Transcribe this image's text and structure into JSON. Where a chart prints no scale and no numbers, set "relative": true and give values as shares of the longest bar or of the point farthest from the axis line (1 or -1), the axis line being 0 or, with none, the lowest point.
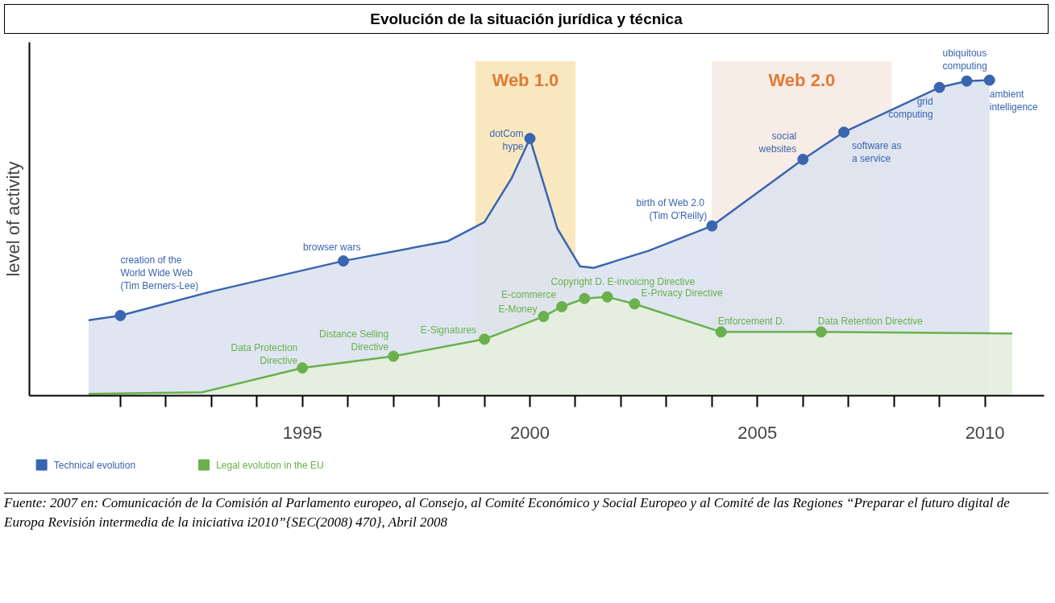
{
  "chart_data": {
    "type": "area",
    "title": "Evolución de la situación jurídica y técnica",
    "ylabel": "level of activity",
    "relative": true,
    "marker": "circle",
    "grid": false,
    "legend": "bottom left",
    "tick_labels": "x",
    "xlim": [
      1989.0,
      2011.3
    ],
    "xticks": [
      {
        "value": 1991,
        "label": null
      },
      {
        "value": 1992,
        "label": null
      },
      {
        "value": 1993,
        "label": null
      },
      {
        "value": 1994,
        "label": null
      },
      1995,
      {
        "value": 1996,
        "label": null
      },
      {
        "value": 1997,
        "label": null
      },
      {
        "value": 1998,
        "label": null
      },
      {
        "value": 1999,
        "label": null
      },
      2000,
      {
        "value": 2001,
        "label": null
      },
      {
        "value": 2002,
        "label": null
      },
      {
        "value": 2003,
        "label": null
      },
      {
        "value": 2004,
        "label": null
      },
      2005,
      {
        "value": 2006,
        "label": null
      },
      {
        "value": 2007,
        "label": null
      },
      {
        "value": 2008,
        "label": null
      },
      {
        "value": 2009,
        "label": null
      },
      2010
    ],
    "series": [
      {
        "name": "Technical evolution",
        "color": "#3a65b0",
        "x": [
          1990.3,
          1991.0,
          1993.0,
          1995.9,
          1998.2,
          1999.0,
          1999.6,
          2000.0,
          2000.6,
          2001.1,
          2001.4,
          2002.6,
          2004.0,
          2006.0,
          2006.9,
          2009.0,
          2009.6,
          2010.1
        ],
        "values": [
          0.239,
          0.254,
          0.33,
          0.427,
          0.49,
          0.55,
          0.69,
          0.815,
          0.53,
          0.41,
          0.405,
          0.459,
          0.538,
          0.749,
          0.835,
          0.977,
          0.997,
          1.0
        ]
      },
      {
        "name": "Legal evolution in the EU",
        "color": "#6ab04c",
        "x": [
          1990.3,
          1992.8,
          1995.0,
          1997.0,
          1999.0,
          2000.3,
          2000.7,
          2001.2,
          2001.7,
          2002.3,
          2004.2,
          2006.4,
          2010.6
        ],
        "values": [
          0.006,
          0.011,
          0.088,
          0.125,
          0.179,
          0.251,
          0.282,
          0.308,
          0.313,
          0.291,
          0.202,
          0.202,
          0.197
        ]
      }
    ],
    "bands": [
      {
        "axis": "x",
        "from": 1998.8,
        "to": 2001.0,
        "label": "Web 1.0",
        "color": "#f9e8bf"
      },
      {
        "axis": "x",
        "from": 2004.0,
        "to": 2007.95,
        "label": "Web 2.0",
        "color": "#f7ece6"
      }
    ],
    "annotations": [
      {
        "text": "creation of the\nWorld Wide Web\n(Tim Berners-Lee)",
        "x": 1991.0,
        "y": 0.254
      },
      {
        "text": "browser wars",
        "x": 1995.9,
        "y": 0.427
      },
      {
        "text": "dotCom\nhype",
        "x": 2000.0,
        "y": 0.815
      },
      {
        "text": "birth of  Web 2.0\n(Tim O'Reilly)",
        "x": 2004.0,
        "y": 0.538
      },
      {
        "text": "social\nwebsites",
        "x": 2006.0,
        "y": 0.749
      },
      {
        "text": "software as\na service",
        "x": 2006.9,
        "y": 0.835
      },
      {
        "text": "grid\ncomputing",
        "x": 2009.0,
        "y": 0.977
      },
      {
        "text": "ubiquitous\ncomputing",
        "x": 2009.6,
        "y": 0.997
      },
      {
        "text": "ambient\nintelligence",
        "x": 2010.1,
        "y": 1.0
      },
      {
        "text": "Data Protection\nDirective",
        "x": 1995.0,
        "y": 0.088
      },
      {
        "text": "Distance Selling\nDirective",
        "x": 1997.0,
        "y": 0.125
      },
      {
        "text": "E-Signatures",
        "x": 1999.0,
        "y": 0.179
      },
      {
        "text": "E-Money",
        "x": 2000.3,
        "y": 0.251
      },
      {
        "text": "E-commerce",
        "x": 2000.7,
        "y": 0.282
      },
      {
        "text": "Copyright D.",
        "x": 2001.2,
        "y": 0.308
      },
      {
        "text": "E-invoicing Directive",
        "x": 2001.7,
        "y": 0.313
      },
      {
        "text": "E-Privacy Directive",
        "x": 2002.3,
        "y": 0.291
      },
      {
        "text": "Enforcement D.",
        "x": 2004.2,
        "y": 0.202
      },
      {
        "text": "Data Retention Directive",
        "x": 2006.4,
        "y": 0.202
      },
      "Fuente: 2007 en: Comunicación de la Comisión al Parlamento europeo, al Consejo, al Comité Económico y Social Europeo y al Comité de las Regiones “Preparar el futuro digital de Europa Revisión intermedia de la iniciativa i2010”{SEC(2008) 470}, Abril 2008"
    ]
  }
}
